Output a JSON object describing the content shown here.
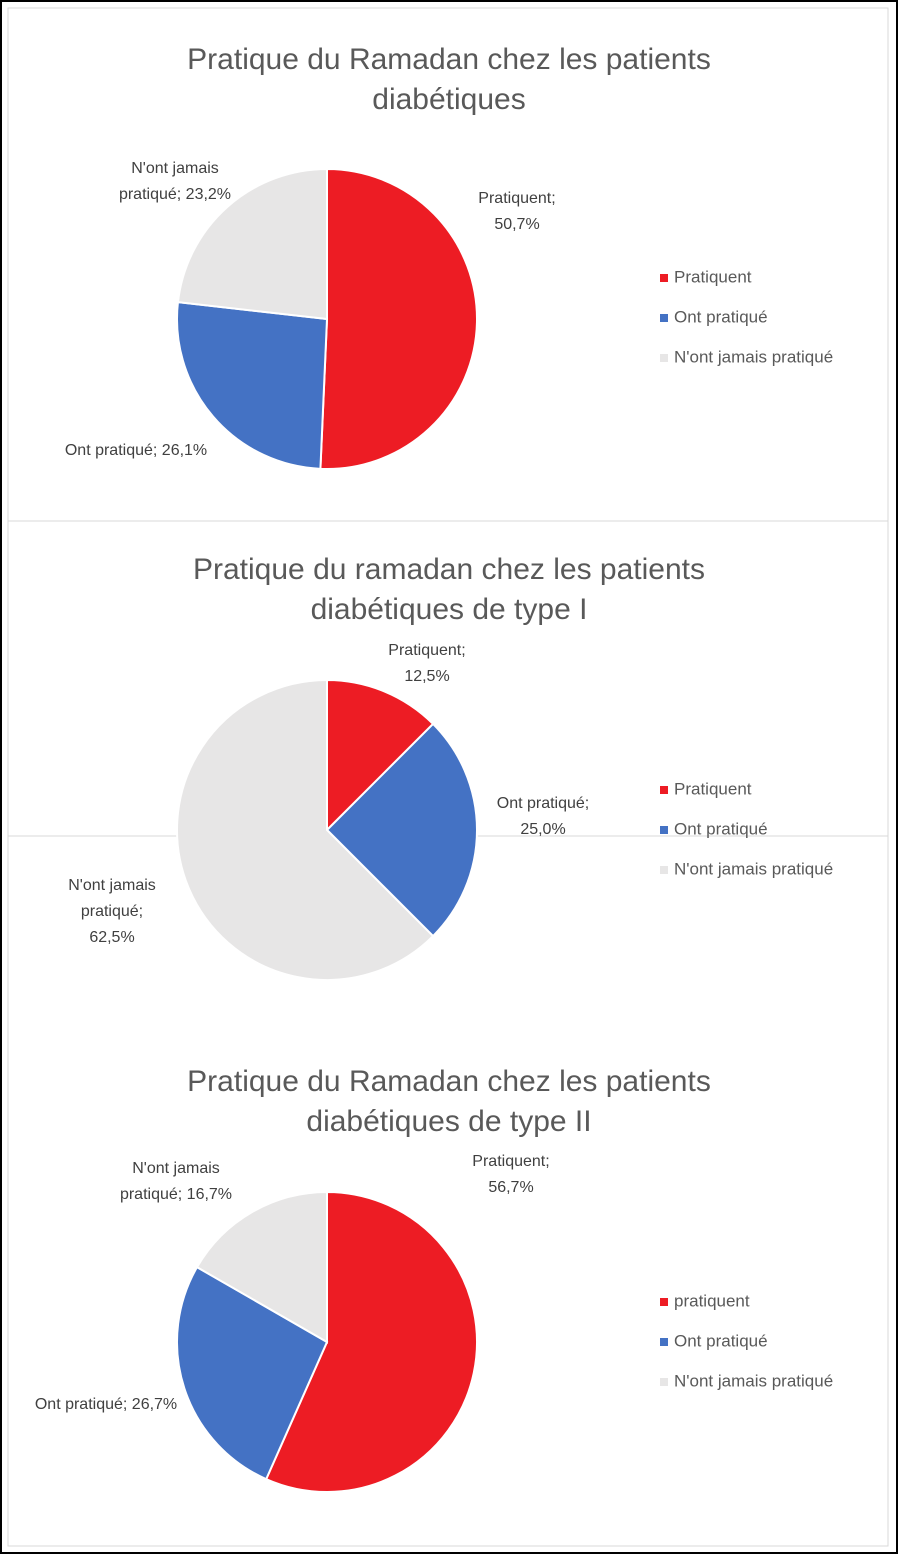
{
  "chart_data": [
    {
      "type": "pie",
      "title": "Pratique du Ramadan chez les patients diabétiques",
      "categories": [
        "Pratiquent",
        "Ont pratiqué",
        "N'ont jamais pratiqué"
      ],
      "values": [
        50.7,
        26.1,
        23.2
      ],
      "value_labels": [
        "Pratiquent; 50,7%",
        "Ont pratiqué; 26,1%",
        "N'ont jamais pratiqué; 23,2%"
      ],
      "colors": [
        "#ed1c24",
        "#4472c4",
        "#e7e6e6"
      ],
      "legend": "right"
    },
    {
      "type": "pie",
      "title": "Pratique du ramadan chez les patients diabétiques de type I",
      "categories": [
        "Pratiquent",
        "Ont pratiqué",
        "N'ont jamais pratiqué"
      ],
      "values": [
        12.5,
        25.0,
        62.5
      ],
      "value_labels": [
        "Pratiquent; 12,5%",
        "Ont pratiqué; 25,0%",
        "N'ont jamais pratiqué; 62,5%"
      ],
      "colors": [
        "#ed1c24",
        "#4472c4",
        "#e7e6e6"
      ],
      "legend": "right"
    },
    {
      "type": "pie",
      "title": "Pratique du Ramadan chez les patients diabétiques de type II",
      "categories": [
        "pratiquent",
        "Ont pratiqué",
        "N'ont jamais pratiqué"
      ],
      "values": [
        56.7,
        26.7,
        16.7
      ],
      "value_labels": [
        "Pratiquent; 56,7%",
        "Ont pratiqué; 26,7%",
        "N'ont jamais pratiqué; 16,7%"
      ],
      "colors": [
        "#ed1c24",
        "#4472c4",
        "#e7e6e6"
      ],
      "legend": "right"
    }
  ]
}
